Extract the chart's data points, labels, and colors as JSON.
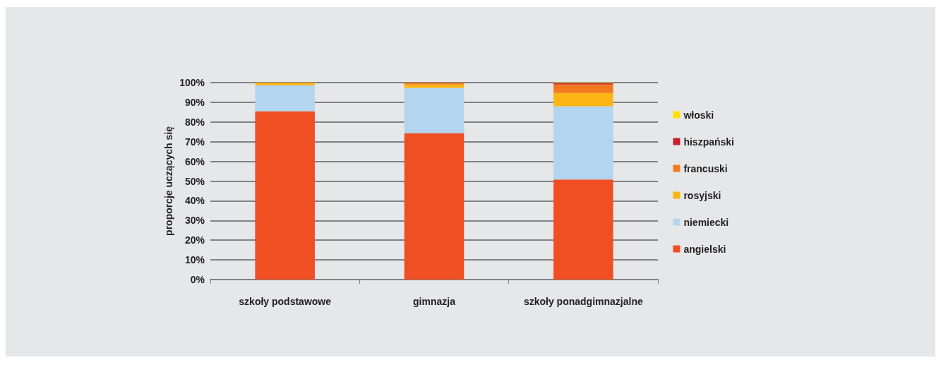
{
  "chart_data": {
    "type": "bar",
    "stacked": true,
    "ylabel": "proporcje uczących się",
    "categories": [
      "szkoły podstawowe",
      "gimnazja",
      "szkoły ponadgimnazjalne"
    ],
    "series": [
      {
        "name": "angielski",
        "color": "#f04e23",
        "values": [
          85.5,
          74.4,
          50.8
        ]
      },
      {
        "name": "niemiecki",
        "color": "#b3d5ef",
        "values": [
          13.2,
          22.9,
          37.2
        ]
      },
      {
        "name": "rosyjski",
        "color": "#fdb515",
        "values": [
          1.3,
          1.7,
          6.7
        ]
      },
      {
        "name": "francuski",
        "color": "#f47a20",
        "values": [
          null,
          1.0,
          4.3
        ]
      },
      {
        "name": "hiszpański",
        "color": "#c8202f",
        "values": [
          null,
          null,
          0.6
        ]
      },
      {
        "name": "włoski",
        "color": "#ffde00",
        "values": [
          null,
          null,
          0.4
        ]
      }
    ],
    "ylim": [
      0,
      100
    ],
    "yticks": [
      {
        "value": 0,
        "label": "0%"
      },
      {
        "value": 10,
        "label": "10%"
      },
      {
        "value": 20,
        "label": "20%"
      },
      {
        "value": 30,
        "label": "30%"
      },
      {
        "value": 40,
        "label": "40%"
      },
      {
        "value": 50,
        "label": "50%"
      },
      {
        "value": 60,
        "label": "60%"
      },
      {
        "value": 70,
        "label": "70%"
      },
      {
        "value": 80,
        "label": "80%"
      },
      {
        "value": 90,
        "label": "90%"
      },
      {
        "value": 100,
        "label": "100%"
      }
    ],
    "grid": "y",
    "legend": "right"
  }
}
